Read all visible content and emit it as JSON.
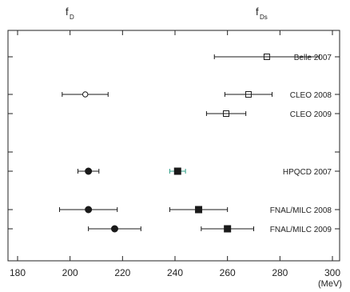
{
  "chart_data": {
    "type": "scatter",
    "title": "",
    "column_headers": [
      {
        "symbol": "f",
        "subscript": "D"
      },
      {
        "symbol": "f",
        "subscript": "Ds"
      }
    ],
    "x_axis": {
      "range": [
        180,
        300
      ],
      "ticks": [
        180,
        200,
        220,
        240,
        260,
        280,
        300
      ],
      "unit": "(MeV)"
    },
    "series": [
      {
        "quantity": "fD",
        "points": [
          {
            "row": "CLEO 2008",
            "x": 205.8,
            "lo": 197.0,
            "hi": 214.5,
            "marker": "open-circle"
          },
          {
            "row": "HPQCD 2007",
            "x": 207.0,
            "lo": 203.0,
            "hi": 211.0,
            "marker": "filled-circle"
          },
          {
            "row": "FNAL/MILC 2008",
            "x": 207.0,
            "lo": 196.0,
            "hi": 218.0,
            "marker": "filled-circle"
          },
          {
            "row": "FNAL/MILC 2009",
            "x": 217.0,
            "lo": 207.0,
            "hi": 227.0,
            "marker": "filled-circle"
          }
        ]
      },
      {
        "quantity": "fDs",
        "points": [
          {
            "row": "Belle 2007",
            "x": 275.0,
            "lo": 255.0,
            "hi": 295.0,
            "marker": "open-square-cross"
          },
          {
            "row": "CLEO 2008",
            "x": 268.0,
            "lo": 259.0,
            "hi": 277.0,
            "marker": "open-square-cross"
          },
          {
            "row": "CLEO 2009",
            "x": 259.5,
            "lo": 252.0,
            "hi": 267.0,
            "marker": "open-square-cross"
          },
          {
            "row": "HPQCD 2007",
            "x": 241.0,
            "lo": 238.0,
            "hi": 244.0,
            "marker": "filled-square",
            "error_color": "#2e9e86"
          },
          {
            "row": "FNAL/MILC 2008",
            "x": 249.0,
            "lo": 238.0,
            "hi": 260.0,
            "marker": "filled-square"
          },
          {
            "row": "FNAL/MILC 2009",
            "x": 260.0,
            "lo": 250.0,
            "hi": 270.0,
            "marker": "filled-square"
          }
        ]
      }
    ],
    "rows": [
      "Belle 2007",
      "CLEO 2008",
      "CLEO 2009",
      "",
      "HPQCD 2007",
      "FNAL/MILC 2008",
      "FNAL/MILC 2009"
    ],
    "grid": false,
    "colors": {
      "marker": "#1a1a1a",
      "highlight_error": "#2e9e86"
    }
  }
}
